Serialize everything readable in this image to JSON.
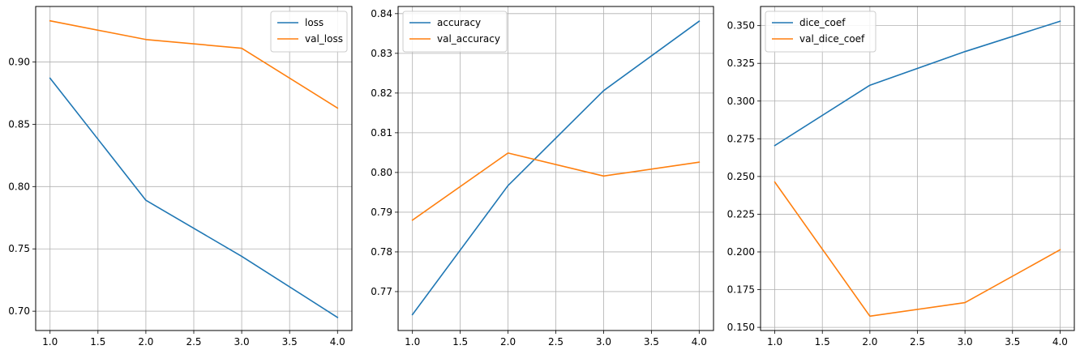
{
  "chart_data": [
    {
      "type": "line",
      "title": "",
      "xlabel": "",
      "ylabel": "",
      "xlim": [
        0.85,
        4.15
      ],
      "ylim": [
        0.6845,
        0.9445
      ],
      "grid": true,
      "legend_position": "upper right",
      "x": [
        1.0,
        2.0,
        3.0,
        4.0
      ],
      "xticks": [
        "1.0",
        "1.5",
        "2.0",
        "2.5",
        "3.0",
        "3.5",
        "4.0"
      ],
      "yticks": [
        "0.70",
        "0.75",
        "0.80",
        "0.85",
        "0.90"
      ],
      "series": [
        {
          "name": "loss",
          "color": "#1f77b4",
          "values": [
            0.887,
            0.789,
            0.744,
            0.695
          ]
        },
        {
          "name": "val_loss",
          "color": "#ff7f0e",
          "values": [
            0.933,
            0.918,
            0.911,
            0.863
          ]
        }
      ]
    },
    {
      "type": "line",
      "title": "",
      "xlabel": "",
      "ylabel": "",
      "xlim": [
        0.85,
        4.15
      ],
      "ylim": [
        0.7602,
        0.8418
      ],
      "grid": true,
      "legend_position": "upper left",
      "x": [
        1.0,
        2.0,
        3.0,
        4.0
      ],
      "xticks": [
        "1.0",
        "1.5",
        "2.0",
        "2.5",
        "3.0",
        "3.5",
        "4.0"
      ],
      "yticks": [
        "0.77",
        "0.78",
        "0.79",
        "0.80",
        "0.81",
        "0.82",
        "0.83",
        "0.84"
      ],
      "series": [
        {
          "name": "accuracy",
          "color": "#1f77b4",
          "values": [
            0.7642,
            0.7967,
            0.8206,
            0.8381
          ]
        },
        {
          "name": "val_accuracy",
          "color": "#ff7f0e",
          "values": [
            0.788,
            0.8049,
            0.7991,
            0.8026
          ]
        }
      ]
    },
    {
      "type": "line",
      "title": "",
      "xlabel": "",
      "ylabel": "",
      "xlim": [
        0.85,
        4.15
      ],
      "ylim": [
        0.1479,
        0.3627
      ],
      "grid": true,
      "legend_position": "upper left",
      "x": [
        1.0,
        2.0,
        3.0,
        4.0
      ],
      "xticks": [
        "1.0",
        "1.5",
        "2.0",
        "2.5",
        "3.0",
        "3.5",
        "4.0"
      ],
      "yticks": [
        "0.150",
        "0.175",
        "0.200",
        "0.225",
        "0.250",
        "0.275",
        "0.300",
        "0.325",
        "0.350"
      ],
      "series": [
        {
          "name": "dice_coef",
          "color": "#1f77b4",
          "values": [
            0.2705,
            0.3105,
            0.3328,
            0.3529
          ]
        },
        {
          "name": "val_dice_coef",
          "color": "#ff7f0e",
          "values": [
            0.2463,
            0.1574,
            0.1664,
            0.2014
          ]
        }
      ]
    }
  ]
}
